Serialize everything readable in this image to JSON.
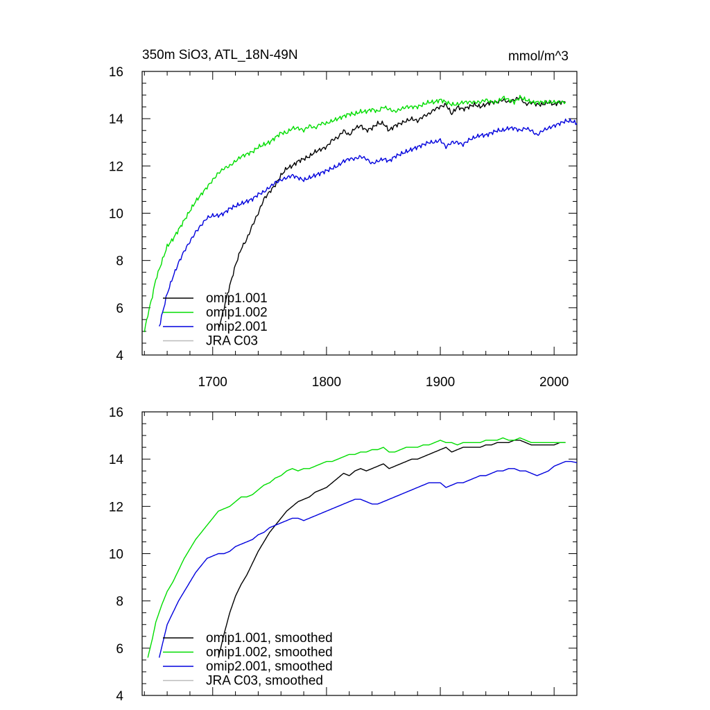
{
  "chart_data": [
    {
      "type": "line",
      "title": "350m SiO3, ATL_18N-49N",
      "units_label": "mmol/m^3",
      "xlim": [
        1638,
        2020
      ],
      "ylim": [
        4,
        16
      ],
      "x_ticks": [
        1700,
        1800,
        1900,
        2000
      ],
      "y_ticks": [
        4,
        6,
        8,
        10,
        12,
        14,
        16
      ],
      "show_x_tick_labels": true,
      "legend_position": "bottom-left",
      "series": [
        {
          "name": "omip1.001",
          "color": "#000000",
          "x": [
            1705,
            1708,
            1712,
            1716,
            1720,
            1725,
            1730,
            1735,
            1740,
            1745,
            1750,
            1755,
            1760,
            1765,
            1770,
            1775,
            1780,
            1785,
            1790,
            1795,
            1800,
            1805,
            1810,
            1815,
            1820,
            1825,
            1830,
            1835,
            1840,
            1845,
            1850,
            1855,
            1860,
            1865,
            1870,
            1875,
            1880,
            1885,
            1890,
            1895,
            1900,
            1905,
            1910,
            1915,
            1920,
            1925,
            1930,
            1935,
            1940,
            1945,
            1950,
            1955,
            1960,
            1965,
            1970,
            1975,
            1980,
            1985,
            1990,
            1995,
            2000,
            2005,
            2010
          ],
          "y": [
            5.1,
            5.6,
            6.4,
            7.1,
            7.8,
            8.5,
            8.9,
            9.5,
            10.0,
            10.6,
            10.9,
            11.2,
            11.6,
            11.9,
            12.0,
            12.2,
            12.3,
            12.4,
            12.6,
            12.7,
            12.8,
            13.1,
            13.2,
            13.5,
            13.3,
            13.6,
            13.7,
            13.5,
            13.6,
            13.8,
            13.8,
            13.5,
            13.7,
            13.8,
            13.9,
            14.0,
            13.9,
            14.1,
            14.2,
            14.4,
            14.5,
            14.6,
            14.2,
            14.5,
            14.4,
            14.5,
            14.6,
            14.5,
            14.6,
            14.7,
            14.7,
            14.8,
            14.7,
            14.8,
            14.9,
            14.6,
            14.7,
            14.6,
            14.6,
            14.7,
            14.6,
            14.7,
            14.7
          ]
        },
        {
          "name": "omip1.002",
          "color": "#00dd00",
          "x": [
            1640,
            1643,
            1647,
            1650,
            1655,
            1660,
            1665,
            1670,
            1675,
            1680,
            1685,
            1690,
            1695,
            1700,
            1705,
            1710,
            1715,
            1720,
            1725,
            1730,
            1735,
            1740,
            1745,
            1750,
            1755,
            1760,
            1765,
            1770,
            1775,
            1780,
            1785,
            1790,
            1795,
            1800,
            1805,
            1810,
            1815,
            1820,
            1825,
            1830,
            1835,
            1840,
            1845,
            1850,
            1855,
            1860,
            1865,
            1870,
            1875,
            1880,
            1885,
            1890,
            1895,
            1900,
            1905,
            1910,
            1915,
            1920,
            1925,
            1930,
            1935,
            1940,
            1945,
            1950,
            1955,
            1960,
            1965,
            1970,
            1975,
            1980,
            1985,
            1990,
            1995,
            2000,
            2005,
            2010
          ],
          "y": [
            5.0,
            5.7,
            6.5,
            7.2,
            7.9,
            8.6,
            8.9,
            9.3,
            9.7,
            10.1,
            10.5,
            10.8,
            11.1,
            11.4,
            11.7,
            11.9,
            12.0,
            12.2,
            12.4,
            12.5,
            12.6,
            12.8,
            12.9,
            13.0,
            13.2,
            13.4,
            13.4,
            13.6,
            13.6,
            13.5,
            13.7,
            13.6,
            13.8,
            13.8,
            13.9,
            14.0,
            14.1,
            14.2,
            14.2,
            14.3,
            14.3,
            14.4,
            14.3,
            14.5,
            14.4,
            14.3,
            14.4,
            14.5,
            14.5,
            14.5,
            14.6,
            14.7,
            14.7,
            14.8,
            14.7,
            14.6,
            14.6,
            14.7,
            14.7,
            14.7,
            14.7,
            14.8,
            14.7,
            14.7,
            14.9,
            14.8,
            14.7,
            14.9,
            14.8,
            14.7,
            14.7,
            14.7,
            14.7,
            14.7,
            14.7,
            14.7
          ]
        },
        {
          "name": "omip2.001",
          "color": "#0000dd",
          "x": [
            1653,
            1656,
            1660,
            1665,
            1670,
            1675,
            1680,
            1685,
            1690,
            1695,
            1700,
            1705,
            1710,
            1715,
            1720,
            1725,
            1730,
            1735,
            1740,
            1745,
            1750,
            1755,
            1760,
            1765,
            1770,
            1775,
            1780,
            1785,
            1790,
            1795,
            1800,
            1805,
            1810,
            1815,
            1820,
            1825,
            1830,
            1835,
            1840,
            1845,
            1850,
            1855,
            1860,
            1865,
            1870,
            1875,
            1880,
            1885,
            1890,
            1895,
            1900,
            1905,
            1910,
            1915,
            1920,
            1925,
            1930,
            1935,
            1940,
            1945,
            1950,
            1955,
            1960,
            1965,
            1970,
            1975,
            1980,
            1985,
            1990,
            1995,
            2000,
            2005,
            2010,
            2015,
            2020
          ],
          "y": [
            5.2,
            5.8,
            6.6,
            7.3,
            7.9,
            8.4,
            8.8,
            9.2,
            9.5,
            9.8,
            9.9,
            9.9,
            10.0,
            10.2,
            10.3,
            10.4,
            10.5,
            10.6,
            10.8,
            10.9,
            11.1,
            11.3,
            11.4,
            11.5,
            11.6,
            11.5,
            11.4,
            11.5,
            11.6,
            11.7,
            11.8,
            11.9,
            12.0,
            12.2,
            12.3,
            12.3,
            12.4,
            12.3,
            12.1,
            12.2,
            12.3,
            12.2,
            12.4,
            12.5,
            12.6,
            12.7,
            12.8,
            12.9,
            13.0,
            13.0,
            13.1,
            12.8,
            13.0,
            13.0,
            12.9,
            13.1,
            13.2,
            13.3,
            13.3,
            13.4,
            13.5,
            13.5,
            13.6,
            13.6,
            13.5,
            13.6,
            13.5,
            13.3,
            13.5,
            13.6,
            13.7,
            13.8,
            13.9,
            13.9,
            13.8
          ]
        },
        {
          "name": "JRA C03",
          "color": "#bbbbbb",
          "x": [],
          "y": []
        }
      ]
    },
    {
      "type": "line",
      "title": "",
      "units_label": "",
      "xlim": [
        1638,
        2020
      ],
      "ylim": [
        4,
        16
      ],
      "x_ticks": [
        1700,
        1800,
        1900,
        2000
      ],
      "y_ticks": [
        4,
        6,
        8,
        10,
        12,
        14,
        16
      ],
      "show_x_tick_labels": false,
      "legend_position": "bottom-left",
      "series": [
        {
          "name": "omip1.001, smoothed",
          "color": "#000000",
          "x": [
            1705,
            1710,
            1715,
            1720,
            1725,
            1730,
            1735,
            1740,
            1745,
            1750,
            1755,
            1760,
            1765,
            1770,
            1775,
            1780,
            1785,
            1790,
            1795,
            1800,
            1805,
            1810,
            1815,
            1820,
            1825,
            1830,
            1835,
            1840,
            1845,
            1850,
            1855,
            1860,
            1865,
            1870,
            1875,
            1880,
            1885,
            1890,
            1895,
            1900,
            1905,
            1910,
            1915,
            1920,
            1925,
            1930,
            1935,
            1940,
            1945,
            1950,
            1955,
            1960,
            1965,
            1970,
            1975,
            1980,
            1985,
            1990,
            1995,
            2000,
            2005,
            2010
          ],
          "y": [
            5.6,
            6.6,
            7.5,
            8.2,
            8.7,
            9.1,
            9.6,
            10.1,
            10.5,
            10.9,
            11.2,
            11.5,
            11.8,
            12.0,
            12.2,
            12.3,
            12.4,
            12.6,
            12.7,
            12.8,
            13.0,
            13.2,
            13.4,
            13.3,
            13.5,
            13.6,
            13.5,
            13.6,
            13.7,
            13.8,
            13.6,
            13.7,
            13.8,
            13.9,
            14.0,
            14.0,
            14.1,
            14.2,
            14.3,
            14.4,
            14.5,
            14.3,
            14.4,
            14.5,
            14.5,
            14.5,
            14.5,
            14.6,
            14.6,
            14.7,
            14.7,
            14.7,
            14.8,
            14.8,
            14.7,
            14.6,
            14.6,
            14.6,
            14.6,
            14.6,
            14.7,
            14.7
          ]
        },
        {
          "name": "omip1.002, smoothed",
          "color": "#00dd00",
          "x": [
            1643,
            1647,
            1650,
            1655,
            1660,
            1665,
            1670,
            1675,
            1680,
            1685,
            1690,
            1695,
            1700,
            1705,
            1710,
            1715,
            1720,
            1725,
            1730,
            1735,
            1740,
            1745,
            1750,
            1755,
            1760,
            1765,
            1770,
            1775,
            1780,
            1785,
            1790,
            1795,
            1800,
            1805,
            1810,
            1815,
            1820,
            1825,
            1830,
            1835,
            1840,
            1845,
            1850,
            1855,
            1860,
            1865,
            1870,
            1875,
            1880,
            1885,
            1890,
            1895,
            1900,
            1905,
            1910,
            1915,
            1920,
            1925,
            1930,
            1935,
            1940,
            1945,
            1950,
            1955,
            1960,
            1965,
            1970,
            1975,
            1980,
            1985,
            1990,
            1995,
            2000,
            2005,
            2010
          ],
          "y": [
            5.6,
            6.4,
            7.1,
            7.8,
            8.4,
            8.8,
            9.3,
            9.8,
            10.2,
            10.6,
            10.9,
            11.2,
            11.5,
            11.8,
            11.9,
            12.0,
            12.2,
            12.4,
            12.4,
            12.5,
            12.7,
            12.9,
            13.0,
            13.2,
            13.3,
            13.5,
            13.6,
            13.5,
            13.6,
            13.6,
            13.7,
            13.8,
            13.9,
            13.9,
            14.0,
            14.1,
            14.2,
            14.2,
            14.3,
            14.3,
            14.4,
            14.4,
            14.5,
            14.3,
            14.3,
            14.4,
            14.5,
            14.5,
            14.5,
            14.6,
            14.6,
            14.7,
            14.8,
            14.7,
            14.7,
            14.6,
            14.7,
            14.7,
            14.7,
            14.7,
            14.8,
            14.8,
            14.8,
            14.9,
            14.8,
            14.8,
            14.9,
            14.8,
            14.7,
            14.7,
            14.7,
            14.7,
            14.7,
            14.7,
            14.7
          ]
        },
        {
          "name": "omip2.001, smoothed",
          "color": "#0000dd",
          "x": [
            1653,
            1657,
            1660,
            1665,
            1670,
            1675,
            1680,
            1685,
            1690,
            1695,
            1700,
            1705,
            1710,
            1715,
            1720,
            1725,
            1730,
            1735,
            1740,
            1745,
            1750,
            1755,
            1760,
            1765,
            1770,
            1775,
            1780,
            1785,
            1790,
            1795,
            1800,
            1805,
            1810,
            1815,
            1820,
            1825,
            1830,
            1835,
            1840,
            1845,
            1850,
            1855,
            1860,
            1865,
            1870,
            1875,
            1880,
            1885,
            1890,
            1895,
            1900,
            1905,
            1910,
            1915,
            1920,
            1925,
            1930,
            1935,
            1940,
            1945,
            1950,
            1955,
            1960,
            1965,
            1970,
            1975,
            1980,
            1985,
            1990,
            1995,
            2000,
            2005,
            2010,
            2015,
            2020
          ],
          "y": [
            5.6,
            6.4,
            7.0,
            7.5,
            8.0,
            8.4,
            8.8,
            9.2,
            9.5,
            9.8,
            9.9,
            10.0,
            10.0,
            10.1,
            10.3,
            10.4,
            10.5,
            10.6,
            10.8,
            10.9,
            11.1,
            11.2,
            11.3,
            11.4,
            11.5,
            11.5,
            11.4,
            11.5,
            11.6,
            11.7,
            11.8,
            11.9,
            12.0,
            12.1,
            12.2,
            12.3,
            12.3,
            12.2,
            12.1,
            12.1,
            12.2,
            12.3,
            12.4,
            12.5,
            12.6,
            12.7,
            12.8,
            12.9,
            13.0,
            13.0,
            13.0,
            12.8,
            12.9,
            13.0,
            13.0,
            13.1,
            13.2,
            13.3,
            13.3,
            13.4,
            13.5,
            13.5,
            13.6,
            13.6,
            13.5,
            13.5,
            13.4,
            13.3,
            13.4,
            13.5,
            13.7,
            13.8,
            13.9,
            13.9,
            13.85
          ]
        },
        {
          "name": "JRA C03, smoothed",
          "color": "#bbbbbb",
          "x": [],
          "y": []
        }
      ]
    }
  ]
}
